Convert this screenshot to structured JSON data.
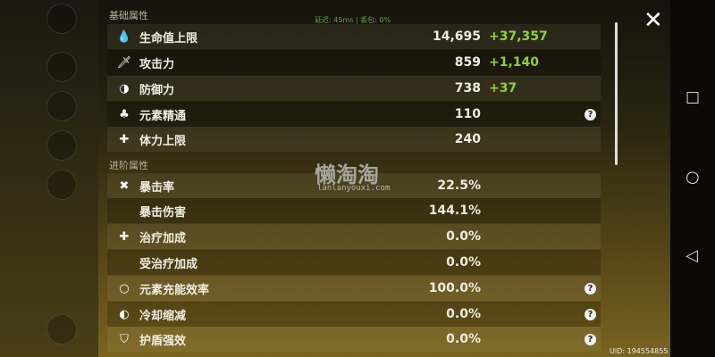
{
  "network": {
    "ping": "延迟: 45ms",
    "loss": "丢包: 0%"
  },
  "close_icon": "close-icon",
  "sections": [
    {
      "title": "基础属性",
      "rows": [
        {
          "icon": "drop-icon",
          "glyph": "💧",
          "label": "生命值上限",
          "value": "14,695",
          "bonus": "+37,357"
        },
        {
          "icon": "sword-icon",
          "glyph": "🗡",
          "label": "攻击力",
          "value": "859",
          "bonus": "+1,140"
        },
        {
          "icon": "shield-icon",
          "glyph": "◑",
          "label": "防御力",
          "value": "738",
          "bonus": "+37"
        },
        {
          "icon": "elemental-mastery-icon",
          "glyph": "♣",
          "label": "元素精通",
          "value": "110",
          "help": true
        },
        {
          "icon": "stamina-icon",
          "glyph": "✚",
          "label": "体力上限",
          "value": "240"
        }
      ]
    },
    {
      "title": "进阶属性",
      "rows": [
        {
          "icon": "crit-icon",
          "glyph": "✖",
          "label": "暴击率",
          "value": "22.5%"
        },
        {
          "icon": "",
          "glyph": "",
          "label": "暴击伤害",
          "value": "144.1%"
        },
        {
          "icon": "healing-icon",
          "glyph": "✚",
          "label": "治疗加成",
          "value": "0.0%"
        },
        {
          "icon": "",
          "glyph": "",
          "label": "受治疗加成",
          "value": "0.0%"
        },
        {
          "icon": "energy-recharge-icon",
          "glyph": "○",
          "label": "元素充能效率",
          "value": "100.0%",
          "help": true
        },
        {
          "icon": "cooldown-icon",
          "glyph": "◐",
          "label": "冷却缩减",
          "value": "0.0%",
          "help": true
        },
        {
          "icon": "shield-strength-icon",
          "glyph": "⛉",
          "label": "护盾强效",
          "value": "0.0%",
          "help": true
        }
      ]
    }
  ],
  "help_glyph": "?",
  "watermark": {
    "title": "懒淘淘",
    "url": "lanlanyouxi.com"
  },
  "uid": "UID: 194554855",
  "colors": {
    "bonus": "#8fd13c"
  }
}
